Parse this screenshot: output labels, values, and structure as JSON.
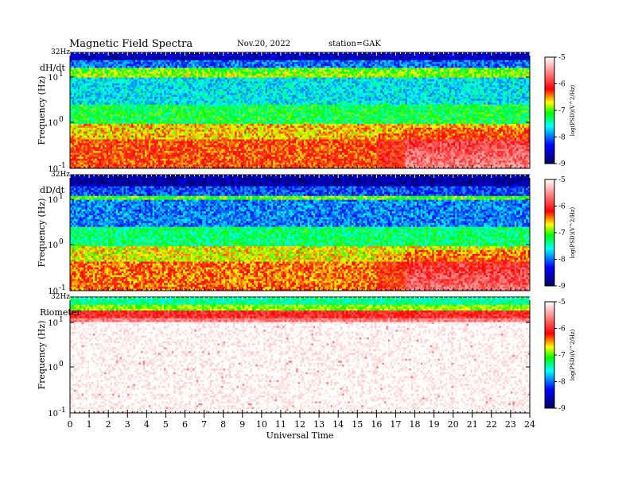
{
  "header": {
    "title": "Magnetic  Field  Spectra",
    "date": "Nov.20, 2022",
    "station": "station=GAK"
  },
  "chart_data": [
    {
      "type": "heatmap",
      "panel_label": "dH/dt",
      "ylabel": "Frequency  (Hz)",
      "top_label": "32Hz",
      "y_ticks": [
        {
          "base": "10",
          "exp": "1",
          "value": 10
        },
        {
          "base": "10",
          "exp": "0",
          "value": 1
        },
        {
          "base": "10",
          "exp": "-1",
          "value": 0.1
        }
      ],
      "y_scale": "log",
      "ylim": [
        0.1,
        32
      ],
      "xlim": [
        0,
        24
      ],
      "colorbar": {
        "ticks": [
          "-5",
          "-6",
          "-7",
          "-8",
          "-9"
        ],
        "range": [
          -9,
          -5
        ],
        "label": "log(PSD)(V^2/Hz)",
        "colors": [
          "#000060",
          "#0000ff",
          "#00ffff",
          "#00ff00",
          "#ffff00",
          "#ff0000",
          "#ffffff"
        ]
      },
      "profile": "mag_h"
    },
    {
      "type": "heatmap",
      "panel_label": "dD/dt",
      "ylabel": "Frequency  (Hz)",
      "top_label": "32Hz",
      "y_ticks": [
        {
          "base": "10",
          "exp": "1",
          "value": 10
        },
        {
          "base": "10",
          "exp": "0",
          "value": 1
        },
        {
          "base": "10",
          "exp": "-1",
          "value": 0.1
        }
      ],
      "y_scale": "log",
      "ylim": [
        0.1,
        32
      ],
      "xlim": [
        0,
        24
      ],
      "colorbar": {
        "ticks": [
          "-5",
          "-6",
          "-7",
          "-8",
          "-9"
        ],
        "range": [
          -9,
          -5
        ],
        "label": "log(PSD)(V^2/Hz)",
        "colors": [
          "#000060",
          "#0000ff",
          "#00ffff",
          "#00ff00",
          "#ffff00",
          "#ff0000",
          "#ffffff"
        ]
      },
      "profile": "mag_d"
    },
    {
      "type": "heatmap",
      "panel_label": "Riometer",
      "ylabel": "Frequency  (Hz)",
      "top_label": "32Hz",
      "y_ticks": [
        {
          "base": "10",
          "exp": "1",
          "value": 10
        },
        {
          "base": "10",
          "exp": "0",
          "value": 1
        },
        {
          "base": "10",
          "exp": "-1",
          "value": 0.1
        }
      ],
      "y_scale": "log",
      "ylim": [
        0.1,
        32
      ],
      "xlim": [
        0,
        24
      ],
      "colorbar": {
        "ticks": [
          "-5",
          "-6",
          "-7",
          "-8",
          "-9"
        ],
        "range": [
          -9,
          -5
        ],
        "label": "log(PSD)(V^2/Hz)",
        "colors": [
          "#000060",
          "#0000ff",
          "#00ffff",
          "#00ff00",
          "#ffff00",
          "#ff0000",
          "#ffffff"
        ]
      },
      "profile": "riometer"
    }
  ],
  "x_axis": {
    "label": "Universal  Time",
    "ticks": [
      "0",
      "1",
      "2",
      "3",
      "4",
      "5",
      "6",
      "7",
      "8",
      "9",
      "10",
      "11",
      "12",
      "13",
      "14",
      "15",
      "16",
      "17",
      "18",
      "19",
      "20",
      "21",
      "22",
      "23",
      "24"
    ]
  }
}
